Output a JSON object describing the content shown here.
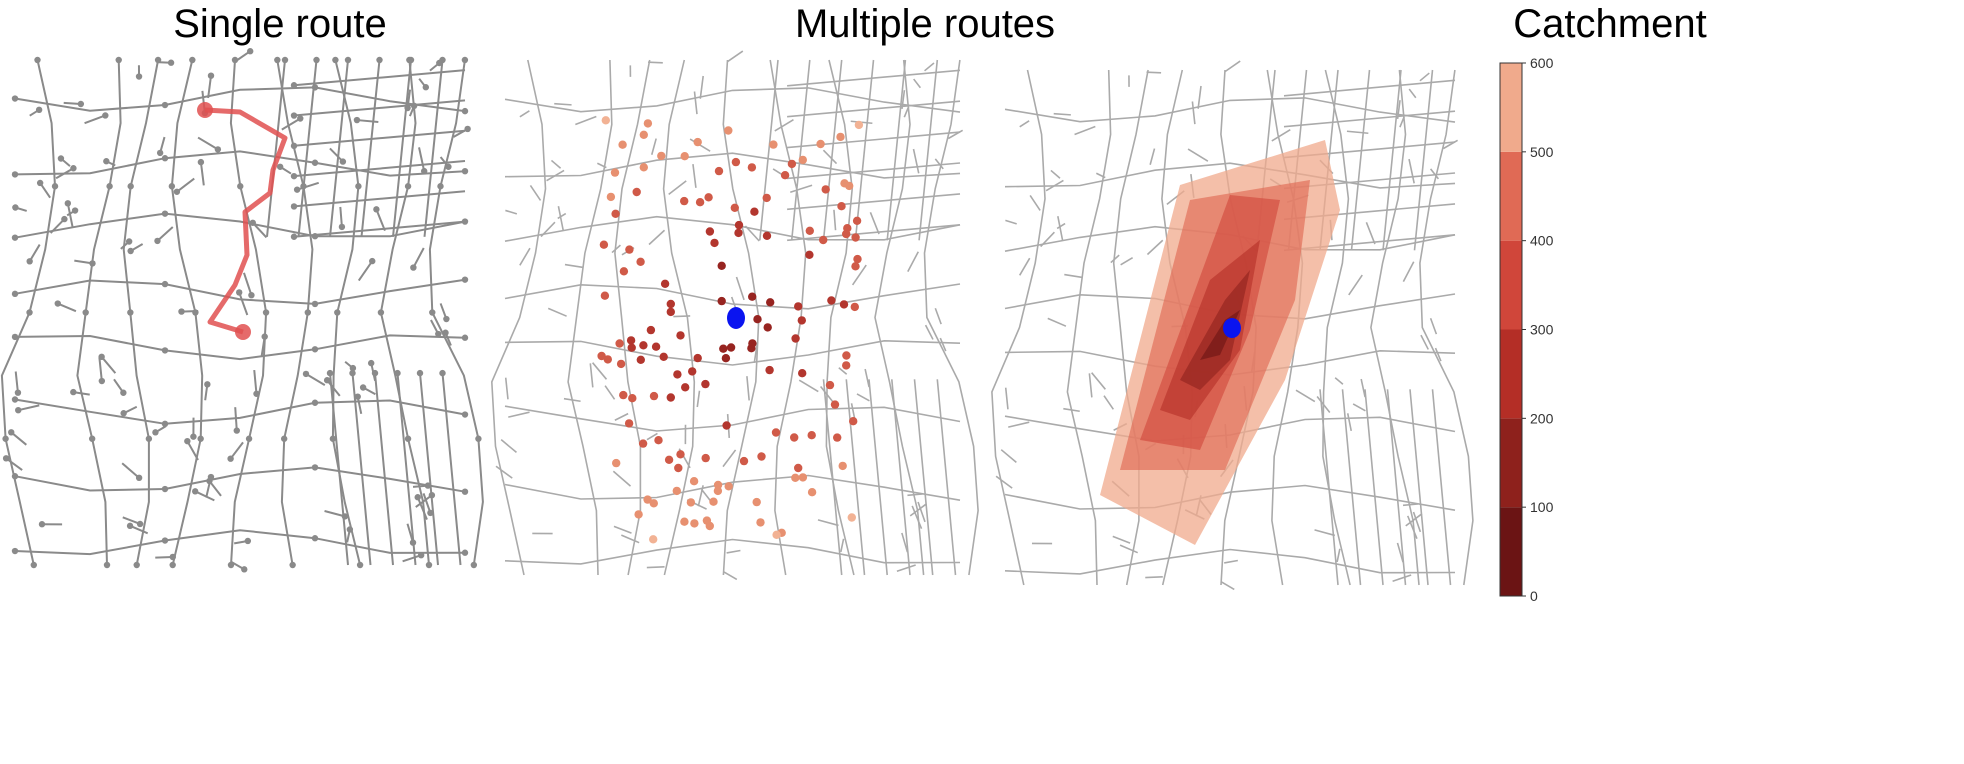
{
  "chart_data": [
    {
      "type": "network-map",
      "title": "Single route",
      "route_color": "#e05050",
      "node_color": "#8a8a8a",
      "edge_color": "#999999"
    },
    {
      "type": "network-map",
      "title": "Multiple routes",
      "origin_color": "#0a14f0",
      "edge_color": "#aaaaaa"
    },
    {
      "type": "isochrone-map",
      "title": "Catchment",
      "origin_color": "#0a14f0",
      "edge_color": "#aaaaaa",
      "colorbar": {
        "min": 0,
        "max": 600,
        "ticks": [
          "0",
          "100",
          "200",
          "300",
          "400",
          "500",
          "600"
        ],
        "bands": [
          {
            "from": 0,
            "to": 100,
            "color": "#6b1414"
          },
          {
            "from": 100,
            "to": 200,
            "color": "#8e211c"
          },
          {
            "from": 200,
            "to": 300,
            "color": "#b42e26"
          },
          {
            "from": 300,
            "to": 400,
            "color": "#d0463a"
          },
          {
            "from": 400,
            "to": 500,
            "color": "#e06a55"
          },
          {
            "from": 500,
            "to": 600,
            "color": "#f0aa8c"
          }
        ]
      }
    }
  ]
}
